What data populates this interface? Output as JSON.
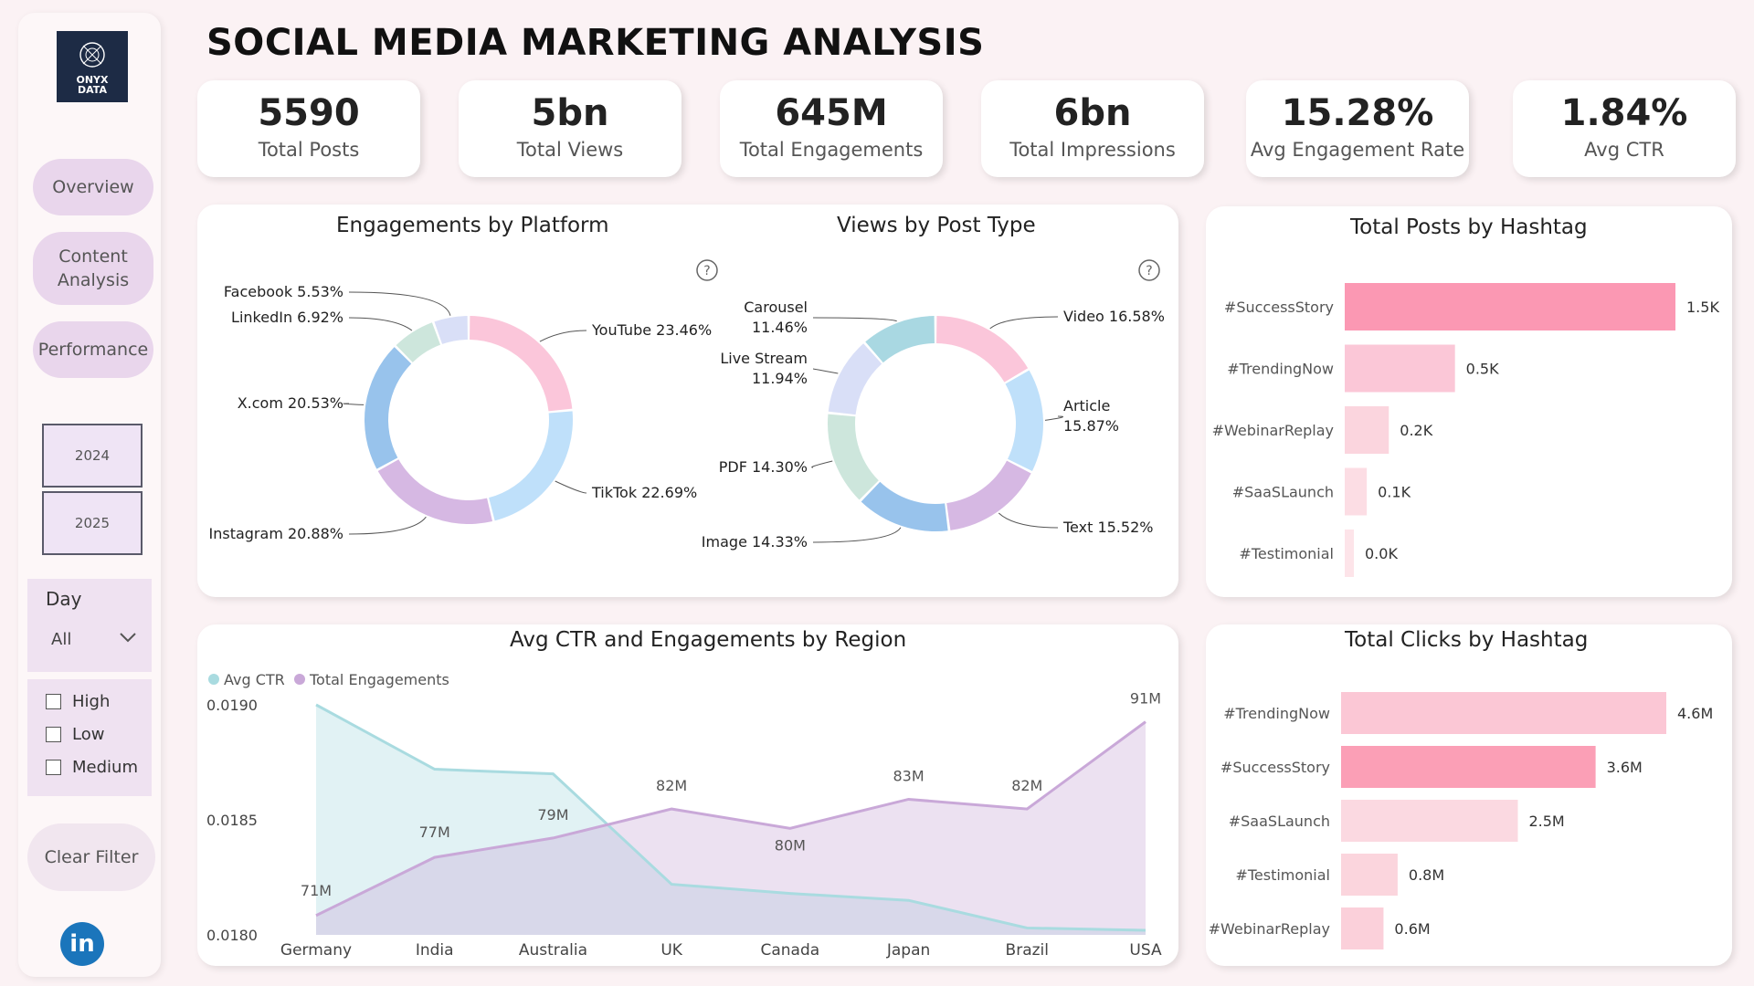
{
  "title": "SOCIAL MEDIA MARKETING ANALYSIS",
  "logo": {
    "line1": "ONYX",
    "line2": "DATA"
  },
  "nav": {
    "overview": "Overview",
    "content_line1": "Content",
    "content_line2": "Analysis",
    "performance": "Performance"
  },
  "years": [
    "2024",
    "2025"
  ],
  "day_filter": {
    "label": "Day",
    "value": "All"
  },
  "priority": [
    "High",
    "Low",
    "Medium"
  ],
  "clear_filter": "Clear Filter",
  "linkedin": "in",
  "kpis": [
    {
      "value": "5590",
      "label": "Total Posts"
    },
    {
      "value": "5bn",
      "label": "Total Views"
    },
    {
      "value": "645M",
      "label": "Total Engagements"
    },
    {
      "value": "6bn",
      "label": "Total Impressions"
    },
    {
      "value": "15.28%",
      "label": "Avg Engagement Rate"
    },
    {
      "value": "1.84%",
      "label": "Avg CTR"
    }
  ],
  "help_glyph": "?",
  "chart_data": [
    {
      "type": "pie",
      "title": "Engagements by Platform",
      "categories": [
        "YouTube",
        "TikTok",
        "Instagram",
        "X.com",
        "LinkedIn",
        "Facebook"
      ],
      "values": [
        23.46,
        22.69,
        20.88,
        20.53,
        6.92,
        5.53
      ],
      "labels": [
        "YouTube 23.46%",
        "TikTok 22.69%",
        "Instagram 20.88%",
        "X.com 20.53%",
        "LinkedIn 6.92%",
        "Facebook 5.53%"
      ],
      "colors": [
        "#fbc6da",
        "#bfe0fa",
        "#d6b8e3",
        "#98c3ec",
        "#cde6dc",
        "#d9dff7"
      ]
    },
    {
      "type": "pie",
      "title": "Views by Post Type",
      "categories": [
        "Video",
        "Article",
        "Text",
        "Image",
        "PDF",
        "Live Stream",
        "Carousel"
      ],
      "values": [
        16.58,
        15.87,
        15.52,
        14.33,
        14.3,
        11.94,
        11.46
      ],
      "labels": [
        [
          "Video 16.58%"
        ],
        [
          "Article",
          "15.87%"
        ],
        [
          "Text 15.52%"
        ],
        [
          "Image 14.33%"
        ],
        [
          "PDF 14.30%"
        ],
        [
          "Live Stream",
          "11.94%"
        ],
        [
          "Carousel",
          "11.46%"
        ]
      ],
      "colors": [
        "#fbc6da",
        "#bfe0fa",
        "#d6b8e3",
        "#98c3ec",
        "#cde6dc",
        "#d9dff7",
        "#a9d8e2"
      ]
    },
    {
      "type": "bar",
      "title": "Total Posts by Hashtag",
      "categories": [
        "#SuccessStory",
        "#TrendingNow",
        "#WebinarReplay",
        "#SaaSLaunch",
        "#Testimonial"
      ],
      "values": [
        1500,
        500,
        200,
        100,
        0
      ],
      "labels": [
        "1.5K",
        "0.5K",
        "0.2K",
        "0.1K",
        "0.0K"
      ]
    },
    {
      "type": "bar",
      "title": "Total Clicks by Hashtag",
      "categories": [
        "#TrendingNow",
        "#SuccessStory",
        "#SaaSLaunch",
        "#Testimonial",
        "#WebinarReplay"
      ],
      "values": [
        4.6,
        3.6,
        2.5,
        0.8,
        0.6
      ],
      "labels": [
        "4.6M",
        "3.6M",
        "2.5M",
        "0.8M",
        "0.6M"
      ]
    },
    {
      "type": "area",
      "title": "Avg CTR and Engagements by Region",
      "categories": [
        "Germany",
        "India",
        "Australia",
        "UK",
        "Canada",
        "Japan",
        "Brazil",
        "USA"
      ],
      "series": [
        {
          "name": "Avg CTR",
          "values": [
            0.019,
            0.01872,
            0.0187,
            0.01822,
            0.01818,
            0.01815,
            0.01803,
            0.01802
          ]
        },
        {
          "name": "Total Engagements",
          "values": [
            71,
            77,
            79,
            82,
            80,
            83,
            82,
            91
          ],
          "labels": [
            "71M",
            "77M",
            "79M",
            "82M",
            "80M",
            "83M",
            "82M",
            "91M"
          ]
        }
      ],
      "yticks": [
        "0.0190",
        "0.0185",
        "0.0180"
      ],
      "ylim": [
        0.018,
        0.019
      ]
    }
  ]
}
